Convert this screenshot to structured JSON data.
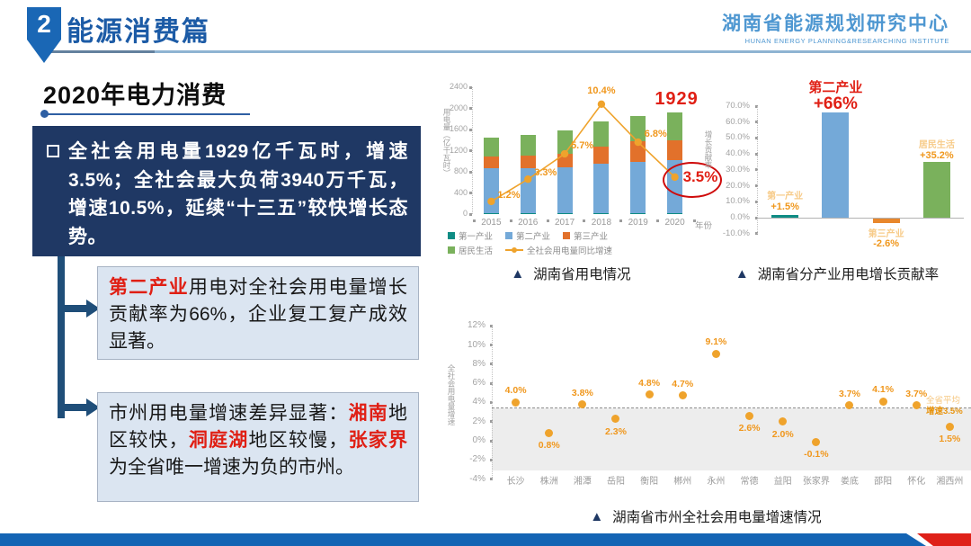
{
  "colors": {
    "accent_blue": "#1c5ba6",
    "navy_box": "#1f3864",
    "accent_red": "#e01f14",
    "orange": "#f0971c",
    "footer_blue": "#1464b4",
    "footer_red": "#df2119"
  },
  "header": {
    "badge": "2",
    "title": "能源消费篇",
    "org_cn": "湖南省能源规划研究中心",
    "org_en": "HUNAN ENERGY PLANNING&RESEARCHING INSTITUTE"
  },
  "section_title": "2020年电力消费",
  "summary_box": {
    "text": "全社会用电量1929亿千瓦时，增速3.5%；全社会最大负荷3940万千瓦，增速10.5%，延续“十三五”较快增长态势。"
  },
  "note1": {
    "segments": [
      {
        "text": "第二产业",
        "red": true
      },
      {
        "text": "用电对全社会用电量增长贡献率为66%，企业复工复产成效显著。",
        "red": false
      }
    ]
  },
  "note2": {
    "segments": [
      {
        "text": "市州用电量增速差异显著：",
        "red": false
      },
      {
        "text": "湘南",
        "red": true
      },
      {
        "text": "地区较快，",
        "red": false
      },
      {
        "text": "洞庭湖",
        "red": true
      },
      {
        "text": "地区较慢，",
        "red": false
      },
      {
        "text": "张家界",
        "red": true
      },
      {
        "text": "为全省唯一增速为负的市州。",
        "red": false
      }
    ]
  },
  "chart_data": [
    {
      "id": "hunan-electricity-usage",
      "type": "stacked-bar+line",
      "title": "湖南省用电情况",
      "ylabel": "用电量（亿千瓦时）",
      "x_suffix": "年份",
      "categories": [
        "2015",
        "2016",
        "2017",
        "2018",
        "2019",
        "2020"
      ],
      "y_ticks": [
        0,
        400,
        800,
        1200,
        1600,
        2000,
        2400
      ],
      "ylim": [
        0,
        2400
      ],
      "series": [
        {
          "name": "第一产业",
          "color": "#0e8c84",
          "values": [
            18,
            18,
            18,
            18,
            18,
            18
          ]
        },
        {
          "name": "第二产业",
          "color": "#74a9d8",
          "values": [
            852,
            852,
            862,
            940,
            972,
            1002
          ]
        },
        {
          "name": "第三产业",
          "color": "#e2712b",
          "values": [
            220,
            235,
            262,
            320,
            395,
            368
          ]
        },
        {
          "name": "居民生活",
          "color": "#7ab15c",
          "values": [
            360,
            395,
            438,
            482,
            475,
            541
          ]
        }
      ],
      "line": {
        "name": "全社会用电量同比增速",
        "color": "#efa32c",
        "values": [
          1.2,
          3.3,
          5.7,
          10.4,
          6.8,
          3.5
        ],
        "labels": [
          "1.2%",
          "3.3%",
          "5.7%",
          "10.4%",
          "6.8%",
          "3.5%"
        ]
      },
      "annotations": {
        "total_2020": "1929",
        "highlight_value": "3.5%"
      }
    },
    {
      "id": "industry-contribution",
      "type": "bar",
      "title": "湖南省分产业用电增长贡献率",
      "ylabel": "增长贡献率",
      "categories": [
        "第一产业",
        "第二产业",
        "第三产业",
        "居民生活"
      ],
      "values": [
        1.5,
        66,
        -2.6,
        35.2
      ],
      "value_labels": [
        "+1.5%",
        "+66%",
        "-2.6%",
        "+35.2%"
      ],
      "colors": [
        "#0e8c84",
        "#74a9d8",
        "#e8872c",
        "#7ab15c"
      ],
      "y_ticks": [
        70,
        60,
        50,
        40,
        30,
        20,
        10,
        0,
        -10
      ],
      "ylim": [
        -10,
        70
      ],
      "highlight": "第二产业 +66%"
    },
    {
      "id": "city-growth",
      "type": "scatter",
      "title": "湖南省市州全社会用电量增速情况",
      "ylabel": "全社会用电量增速",
      "categories": [
        "长沙",
        "株洲",
        "湘潭",
        "岳阳",
        "衡阳",
        "郴州",
        "永州",
        "常德",
        "益阳",
        "张家界",
        "娄底",
        "邵阳",
        "怀化",
        "湘西州"
      ],
      "values": [
        4.0,
        0.8,
        3.8,
        2.3,
        4.8,
        4.7,
        9.1,
        2.6,
        2.0,
        -0.1,
        3.7,
        4.1,
        3.7,
        1.5
      ],
      "value_labels": [
        "4.0%",
        "0.8%",
        "3.8%",
        "2.3%",
        "4.8%",
        "4.7%",
        "9.1%",
        "2.6%",
        "2.0%",
        "-0.1%",
        "3.7%",
        "4.1%",
        "3.7%",
        "1.5%"
      ],
      "label_pos": [
        "above",
        "below",
        "above",
        "below",
        "above",
        "above",
        "above",
        "below",
        "below",
        "below",
        "above",
        "above",
        "above",
        "below"
      ],
      "y_ticks": [
        12,
        10,
        8,
        6,
        4,
        2,
        0,
        -2,
        -4
      ],
      "ylim": [
        -4,
        12
      ],
      "dot_color": "#efa32c",
      "avg_line": {
        "value": 3.5,
        "label_line1": "全省平均",
        "label_line2": "增速3.5%"
      },
      "band": {
        "top": 3.4,
        "bottom": -3.1
      }
    }
  ]
}
